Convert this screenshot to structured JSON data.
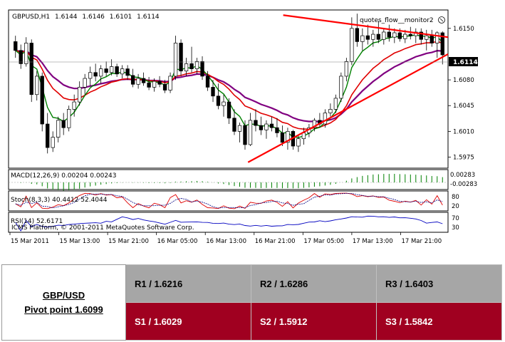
{
  "chart_data": {
    "type": "candlestick",
    "header": {
      "symbol": "GBPUSD,H1",
      "ohlc": [
        "1.6144",
        "1.6146",
        "1.6101",
        "1.6114"
      ],
      "indicator_label": "quotes_flow__monitor2"
    },
    "price_axis": {
      "ylim": [
        1.596,
        1.6175
      ],
      "ticks": [
        "1.6150",
        "1.6080",
        "1.6045",
        "1.6010",
        "1.5975"
      ],
      "current_price": "1.6114"
    },
    "time_labels": [
      "15 Mar 2011",
      "15 Mar 13:00",
      "15 Mar 21:00",
      "16 Mar 05:00",
      "16 Mar 13:00",
      "16 Mar 21:00",
      "17 Mar 05:00",
      "17 Mar 13:00",
      "17 Mar 21:00"
    ],
    "candles": [
      [
        1.6132,
        1.614,
        1.611,
        1.612
      ],
      [
        1.612,
        1.6128,
        1.6095,
        1.6102
      ],
      [
        1.6102,
        1.6138,
        1.6098,
        1.613
      ],
      [
        1.613,
        1.6135,
        1.605,
        1.606
      ],
      [
        1.606,
        1.6092,
        1.6052,
        1.6085
      ],
      [
        1.6085,
        1.609,
        1.601,
        1.602
      ],
      [
        1.602,
        1.6035,
        1.598,
        1.5988
      ],
      [
        1.5988,
        1.601,
        1.5982,
        1.6002
      ],
      [
        1.6002,
        1.603,
        1.5995,
        1.6025
      ],
      [
        1.6025,
        1.6035,
        1.6005,
        1.6015
      ],
      [
        1.6015,
        1.6045,
        1.601,
        1.604
      ],
      [
        1.604,
        1.606,
        1.603,
        1.605
      ],
      [
        1.605,
        1.6078,
        1.6045,
        1.607
      ],
      [
        1.607,
        1.6088,
        1.606,
        1.6082
      ],
      [
        1.6082,
        1.6098,
        1.6072,
        1.609
      ],
      [
        1.609,
        1.6102,
        1.6078,
        1.6085
      ],
      [
        1.6085,
        1.61,
        1.6075,
        1.6095
      ],
      [
        1.6095,
        1.6105,
        1.6085,
        1.609
      ],
      [
        1.609,
        1.6108,
        1.6086,
        1.6098
      ],
      [
        1.6098,
        1.6102,
        1.6084,
        1.6088
      ],
      [
        1.6088,
        1.61,
        1.6082,
        1.6095
      ],
      [
        1.6095,
        1.61,
        1.608,
        1.6086
      ],
      [
        1.6086,
        1.6095,
        1.607,
        1.6074
      ],
      [
        1.6074,
        1.6088,
        1.6068,
        1.6082
      ],
      [
        1.6082,
        1.609,
        1.6072,
        1.6076
      ],
      [
        1.6076,
        1.6084,
        1.6066,
        1.607
      ],
      [
        1.607,
        1.6082,
        1.6064,
        1.6078
      ],
      [
        1.6078,
        1.6085,
        1.607,
        1.6074
      ],
      [
        1.6074,
        1.608,
        1.6062,
        1.6066
      ],
      [
        1.6066,
        1.609,
        1.6062,
        1.6085
      ],
      [
        1.6085,
        1.614,
        1.608,
        1.613
      ],
      [
        1.613,
        1.6135,
        1.6085,
        1.6092
      ],
      [
        1.6092,
        1.611,
        1.6085,
        1.6102
      ],
      [
        1.6102,
        1.6125,
        1.609,
        1.6095
      ],
      [
        1.6095,
        1.611,
        1.6088,
        1.6105
      ],
      [
        1.6105,
        1.6112,
        1.608,
        1.6085
      ],
      [
        1.6085,
        1.6092,
        1.6065,
        1.607
      ],
      [
        1.607,
        1.608,
        1.605,
        1.6058
      ],
      [
        1.6058,
        1.6075,
        1.604,
        1.6045
      ],
      [
        1.6045,
        1.606,
        1.603,
        1.605
      ],
      [
        1.605,
        1.6055,
        1.602,
        1.6028
      ],
      [
        1.6028,
        1.604,
        1.6005,
        1.601
      ],
      [
        1.601,
        1.6022,
        1.5995,
        1.6018
      ],
      [
        1.6018,
        1.6025,
        1.5985,
        1.5992
      ],
      [
        1.5992,
        1.6035,
        1.599,
        1.6025
      ],
      [
        1.6025,
        1.604,
        1.601,
        1.6018
      ],
      [
        1.6018,
        1.603,
        1.6005,
        1.6012
      ],
      [
        1.6012,
        1.6025,
        1.6,
        1.602
      ],
      [
        1.602,
        1.603,
        1.601,
        1.6015
      ],
      [
        1.6015,
        1.6028,
        1.6002,
        1.6008
      ],
      [
        1.6008,
        1.6018,
        1.599,
        1.5995
      ],
      [
        1.5995,
        1.6015,
        1.5985,
        1.601
      ],
      [
        1.601,
        1.6012,
        1.5985,
        1.599
      ],
      [
        1.599,
        1.6005,
        1.5982,
        1.6
      ],
      [
        1.6,
        1.6015,
        1.5992,
        1.6008
      ],
      [
        1.6008,
        1.602,
        1.6002,
        1.6015
      ],
      [
        1.6015,
        1.6028,
        1.601,
        1.6025
      ],
      [
        1.6025,
        1.6035,
        1.6015,
        1.602
      ],
      [
        1.602,
        1.604,
        1.6015,
        1.6035
      ],
      [
        1.6035,
        1.6048,
        1.603,
        1.604
      ],
      [
        1.604,
        1.606,
        1.6035,
        1.6055
      ],
      [
        1.6055,
        1.609,
        1.605,
        1.6085
      ],
      [
        1.6085,
        1.611,
        1.6078,
        1.6105
      ],
      [
        1.6105,
        1.6165,
        1.61,
        1.615
      ],
      [
        1.615,
        1.617,
        1.6125,
        1.6132
      ],
      [
        1.6132,
        1.615,
        1.612,
        1.614
      ],
      [
        1.614,
        1.6155,
        1.6128,
        1.6135
      ],
      [
        1.6135,
        1.6148,
        1.6125,
        1.6142
      ],
      [
        1.6142,
        1.616,
        1.613,
        1.6135
      ],
      [
        1.6135,
        1.615,
        1.6128,
        1.6145
      ],
      [
        1.6145,
        1.6155,
        1.6132,
        1.6138
      ],
      [
        1.6138,
        1.615,
        1.613,
        1.6144
      ],
      [
        1.6144,
        1.615,
        1.6132,
        1.6136
      ],
      [
        1.6136,
        1.6148,
        1.613,
        1.6142
      ],
      [
        1.6142,
        1.6152,
        1.6135,
        1.614
      ],
      [
        1.614,
        1.615,
        1.613,
        1.6145
      ],
      [
        1.6145,
        1.615,
        1.6128,
        1.6135
      ],
      [
        1.6135,
        1.6148,
        1.612,
        1.614
      ],
      [
        1.614,
        1.6148,
        1.6125,
        1.613
      ],
      [
        1.613,
        1.6146,
        1.611,
        1.6144
      ],
      [
        1.6144,
        1.6146,
        1.6101,
        1.6114
      ]
    ],
    "trendlines": [
      {
        "from": [
          0.625,
          1.6168
        ],
        "to": [
          1.0,
          1.6138
        ]
      },
      {
        "from": [
          0.545,
          1.5968
        ],
        "to": [
          1.0,
          1.6115
        ]
      }
    ],
    "moving_averages": {
      "colors": {
        "fast": "#008000",
        "mid": "#e00000",
        "slow": "#800080"
      },
      "periods": {
        "fast": 5,
        "mid": 13,
        "slow": 21
      }
    },
    "macd": {
      "label": "MACD(12,26,9) 0.00204 0.00243",
      "ticks": [
        "0.00283",
        "-0.00283"
      ]
    },
    "stoch": {
      "label": "Stoch(8,3,3) 40.4412 52.4044",
      "ticks": [
        "80",
        "20"
      ]
    },
    "rsi": {
      "label": "RSI(14) 52.6171",
      "ticks": [
        "70",
        "30"
      ]
    },
    "watermark": "ICMS Platform, © 2001-2011 MetaQuotes Software Corp."
  },
  "pivot": {
    "symbol": "GBP/USD",
    "pivot_label": "Pivot point 1.6099",
    "resistance": [
      "R1 / 1.6216",
      "R2 / 1.6286",
      "R3 / 1.6403"
    ],
    "support": [
      "S1 / 1.6029",
      "S2 / 1.5912",
      "S3 / 1.5842"
    ]
  },
  "colors": {
    "resistance_bg": "#a6a6a6",
    "support_bg": "#a00020",
    "trendline": "#ff0000"
  }
}
